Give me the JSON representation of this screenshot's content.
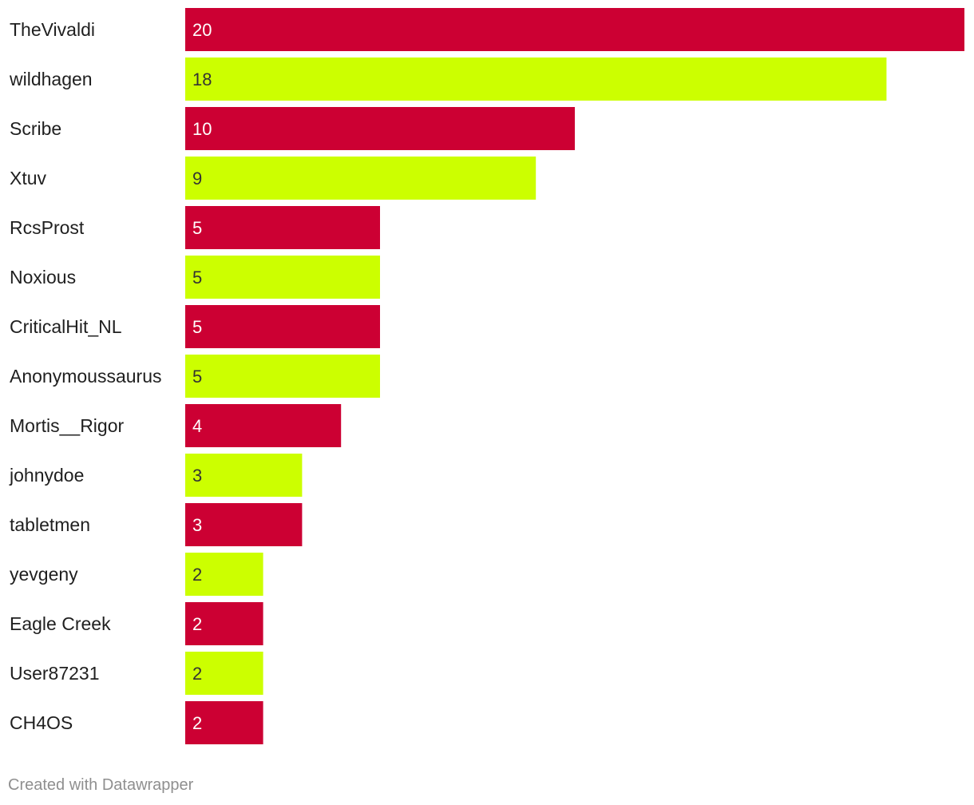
{
  "chart_data": {
    "type": "bar",
    "orientation": "horizontal",
    "categories": [
      "TheVivaldi",
      "wildhagen",
      "Scribe",
      "Xtuv",
      "RcsProst",
      "Noxious",
      "CriticalHit_NL",
      "Anonymoussaurus",
      "Mortis__Rigor",
      "johnydoe",
      "tabletmen",
      "yevgeny",
      "Eagle Creek",
      "User87231",
      "CH4OS"
    ],
    "values": [
      20,
      18,
      10,
      9,
      5,
      5,
      5,
      5,
      4,
      3,
      3,
      2,
      2,
      2,
      2
    ],
    "xlim": [
      0,
      20
    ],
    "grid": false,
    "legend": "none",
    "colors": [
      "#cc0033",
      "#ccff00"
    ],
    "value_label_colors": [
      "#ffffff",
      "#333333"
    ]
  },
  "footer": {
    "credit": "Created with Datawrapper"
  }
}
